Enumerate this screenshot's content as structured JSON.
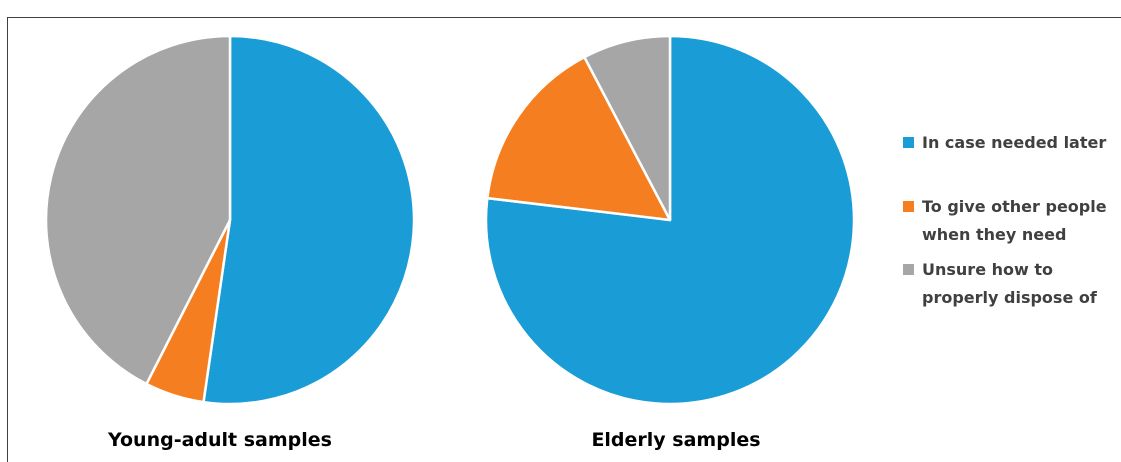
{
  "chart_data": {
    "type": "pie",
    "legend_position": "right",
    "legend": [
      {
        "label_lines": [
          "In case needed later"
        ],
        "color": "#1a9cd6"
      },
      {
        "label_lines": [
          "To give other people",
          "when they need"
        ],
        "color": "#f57f20"
      },
      {
        "label_lines": [
          "Unsure how to",
          "properly dispose of"
        ],
        "color": "#a6a6a6"
      }
    ],
    "categories": [
      "In case needed later",
      "To give other people when they need",
      "Unsure how to properly dispose of"
    ],
    "charts": [
      {
        "caption": "Young-adult samples",
        "values": [
          52.3,
          5.2,
          42.5
        ]
      },
      {
        "caption": "Elderly samples",
        "values": [
          76.9,
          15.4,
          7.7
        ]
      }
    ]
  }
}
